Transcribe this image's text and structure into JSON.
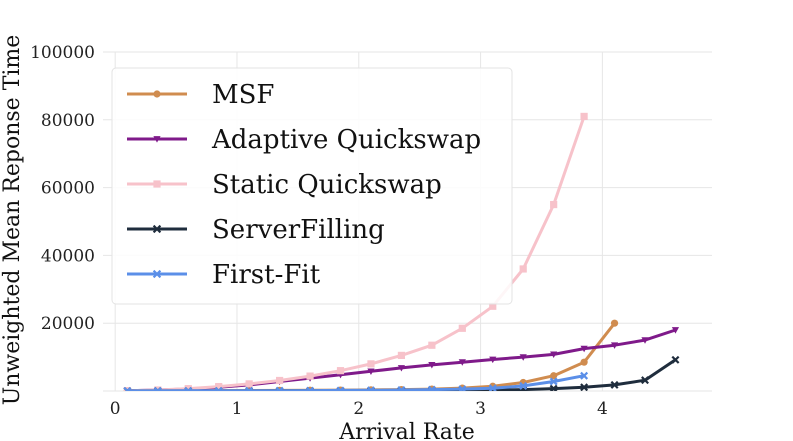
{
  "chart_data": {
    "type": "line",
    "title": "",
    "xlabel": "Arrival Rate",
    "ylabel": "Unweighted Mean Reponse Time",
    "xlim": [
      -0.1,
      4.9
    ],
    "ylim": [
      0,
      100000
    ],
    "xticks": [
      0,
      1,
      2,
      3,
      4
    ],
    "yticks": [
      20000,
      40000,
      60000,
      80000,
      100000
    ],
    "grid": true,
    "legend_position": "top-left",
    "series": [
      {
        "name": "MSF",
        "color": "#d08c4f",
        "marker": "circle",
        "x": [
          0.1,
          0.35,
          0.6,
          0.85,
          1.1,
          1.35,
          1.6,
          1.85,
          2.1,
          2.35,
          2.6,
          2.85,
          3.1,
          3.35,
          3.6,
          3.85,
          4.1
        ],
        "y": [
          60,
          80,
          100,
          120,
          150,
          180,
          220,
          260,
          330,
          420,
          560,
          850,
          1400,
          2500,
          4500,
          8500,
          20000
        ]
      },
      {
        "name": "Adaptive Quickswap",
        "color": "#7f1a8a",
        "marker": "triangle-down",
        "x": [
          0.1,
          0.35,
          0.6,
          0.85,
          1.1,
          1.35,
          1.6,
          1.85,
          2.1,
          2.35,
          2.6,
          2.85,
          3.1,
          3.35,
          3.6,
          3.85,
          4.1,
          4.35,
          4.6
        ],
        "y": [
          100,
          300,
          600,
          1100,
          1800,
          2800,
          3800,
          4800,
          5800,
          6800,
          7700,
          8500,
          9300,
          10000,
          10800,
          12500,
          13500,
          15000,
          18000
        ]
      },
      {
        "name": "Static Quickswap",
        "color": "#f7c2ca",
        "marker": "square",
        "x": [
          0.1,
          0.35,
          0.6,
          0.85,
          1.1,
          1.35,
          1.6,
          1.85,
          2.1,
          2.35,
          2.6,
          2.85,
          3.1,
          3.35,
          3.6,
          3.85
        ],
        "y": [
          100,
          300,
          700,
          1300,
          2100,
          3100,
          4400,
          6000,
          8000,
          10500,
          13500,
          18500,
          25000,
          36000,
          55000,
          81000
        ]
      },
      {
        "name": "ServerFilling",
        "color": "#1f2d3d",
        "marker": "x",
        "x": [
          0.1,
          0.35,
          0.6,
          0.85,
          1.1,
          1.35,
          1.6,
          1.85,
          2.1,
          2.35,
          2.6,
          2.85,
          3.1,
          3.35,
          3.6,
          3.85,
          4.1,
          4.35,
          4.6
        ],
        "y": [
          20,
          25,
          30,
          35,
          40,
          50,
          60,
          70,
          80,
          100,
          130,
          170,
          250,
          400,
          700,
          1100,
          1800,
          3200,
          9200
        ]
      },
      {
        "name": "First-Fit",
        "color": "#5b8fe8",
        "marker": "x",
        "x": [
          0.1,
          0.35,
          0.6,
          0.85,
          1.1,
          1.35,
          1.6,
          1.85,
          2.1,
          2.35,
          2.6,
          2.85,
          3.1,
          3.35,
          3.6,
          3.85
        ],
        "y": [
          30,
          40,
          50,
          60,
          80,
          100,
          130,
          170,
          220,
          300,
          400,
          550,
          800,
          1500,
          2800,
          4500
        ]
      }
    ]
  }
}
